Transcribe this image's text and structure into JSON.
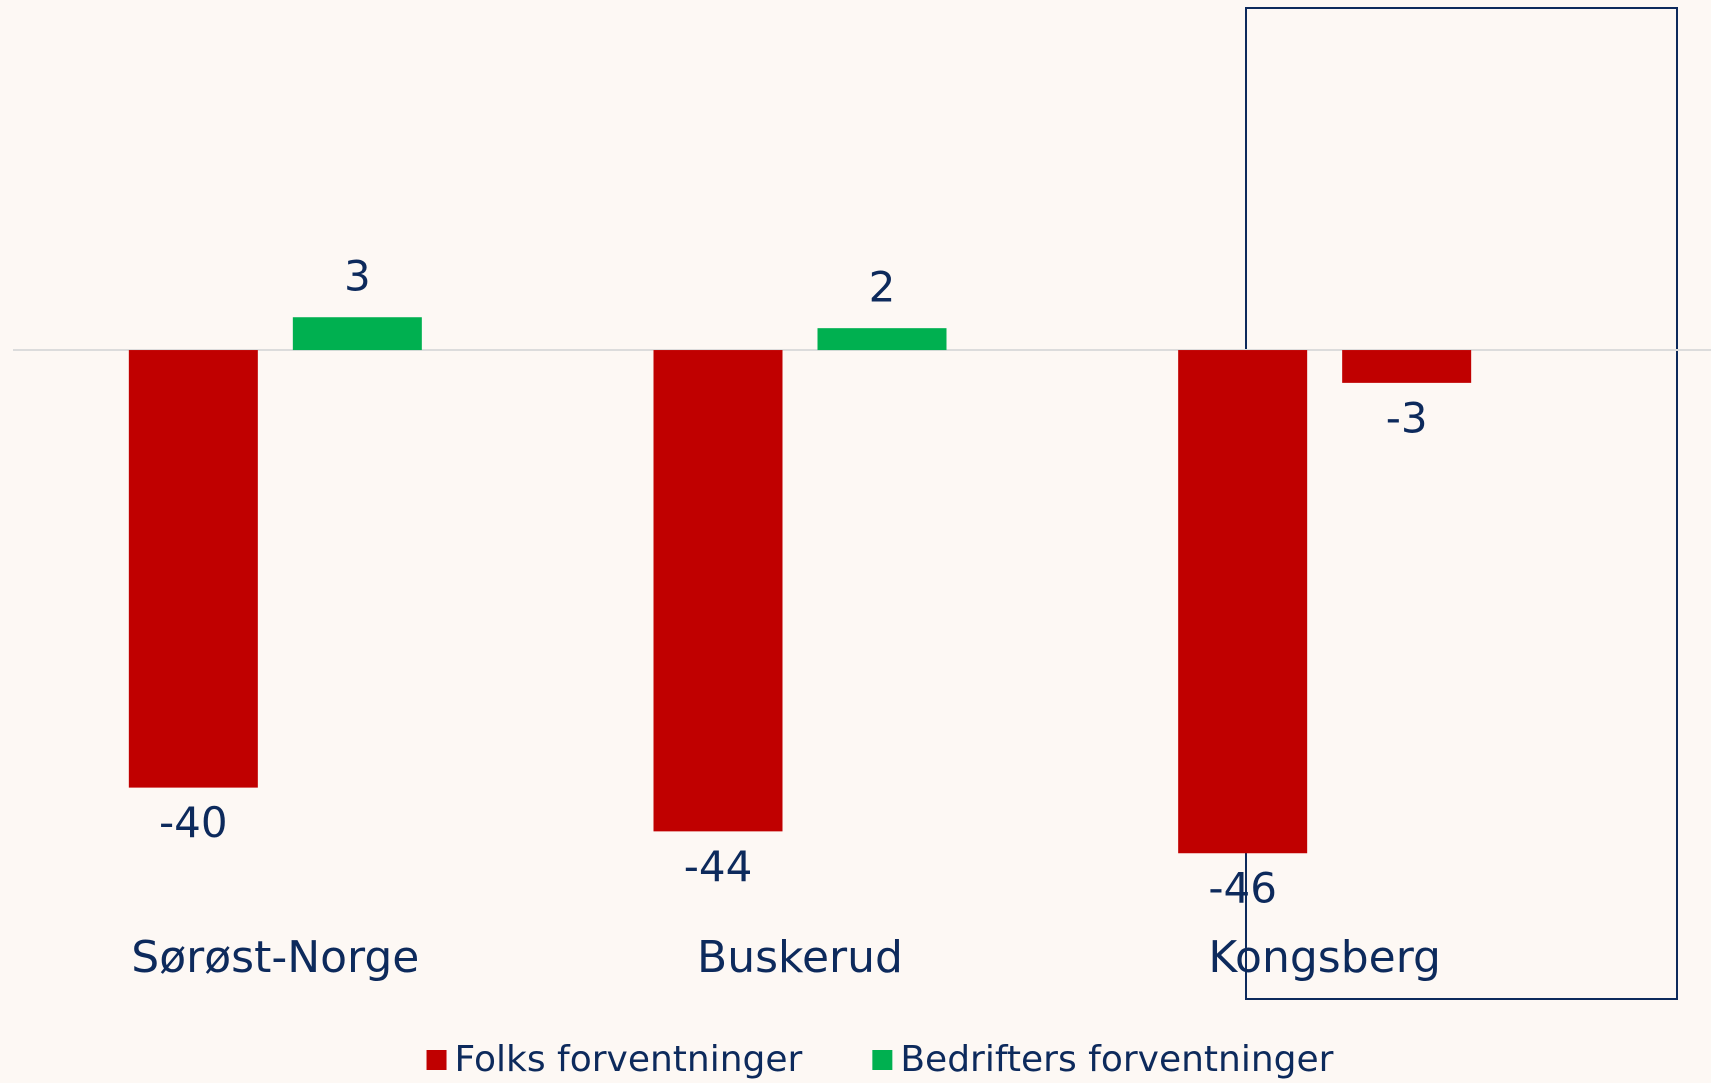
{
  "chart_data": {
    "type": "bar",
    "categories": [
      "Sørøst-Norge",
      "Buskerud",
      "Kongsberg"
    ],
    "series": [
      {
        "name": "Folks forventninger",
        "color": "#c00000",
        "values": [
          -40,
          -44,
          -46
        ]
      },
      {
        "name": "Bedrifters forventninger",
        "color": "#00b050",
        "colors": [
          "#00b050",
          "#00b050",
          "#c00000"
        ],
        "values": [
          3,
          2,
          -3
        ]
      }
    ],
    "ylim": [
      -50,
      32
    ],
    "legend": "bottom"
  }
}
